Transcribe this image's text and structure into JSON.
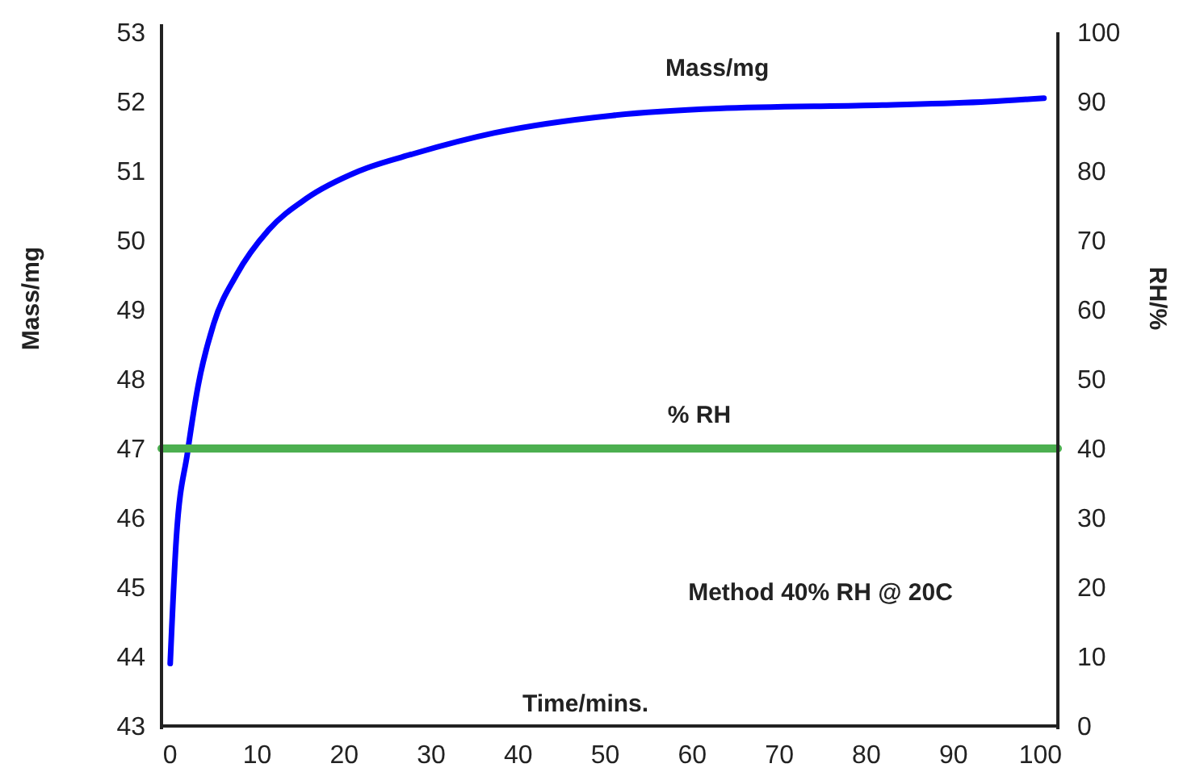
{
  "chart_data": {
    "type": "line",
    "xlabel": "Time/mins.",
    "ylabel": "Mass/mg",
    "y2label": "RH/%",
    "xlim": [
      -1,
      102
    ],
    "xticks": [
      0,
      10,
      20,
      30,
      40,
      50,
      60,
      70,
      80,
      90,
      100
    ],
    "ylim": [
      43,
      53
    ],
    "yticks": [
      43,
      44,
      45,
      46,
      47,
      48,
      49,
      50,
      51,
      52,
      53
    ],
    "y2lim": [
      0,
      100
    ],
    "y2ticks": [
      0,
      10,
      20,
      30,
      40,
      50,
      60,
      70,
      80,
      90,
      100
    ],
    "grid": false,
    "marker": "none",
    "line_style": "solid",
    "series": [
      {
        "name": "Mass/mg",
        "color": "#0000ff",
        "x": [
          0,
          0.7,
          2,
          3.2,
          5,
          7.6,
          11.3,
          15.6,
          21.7,
          28,
          37.3,
          50.8,
          63,
          81.8,
          94,
          100.4
        ],
        "values": [
          43.9,
          45.7,
          46.95,
          47.9,
          48.8,
          49.5,
          50.15,
          50.6,
          51,
          51.25,
          51.55,
          51.8,
          51.9,
          51.95,
          52,
          52.05
        ]
      },
      {
        "name": "% RH",
        "color": "#4caf50",
        "axis": "y2",
        "x": [
          -1,
          102
        ],
        "values": [
          40,
          40
        ]
      }
    ],
    "annotations": [
      "Method 40% RH @ 20C"
    ]
  }
}
